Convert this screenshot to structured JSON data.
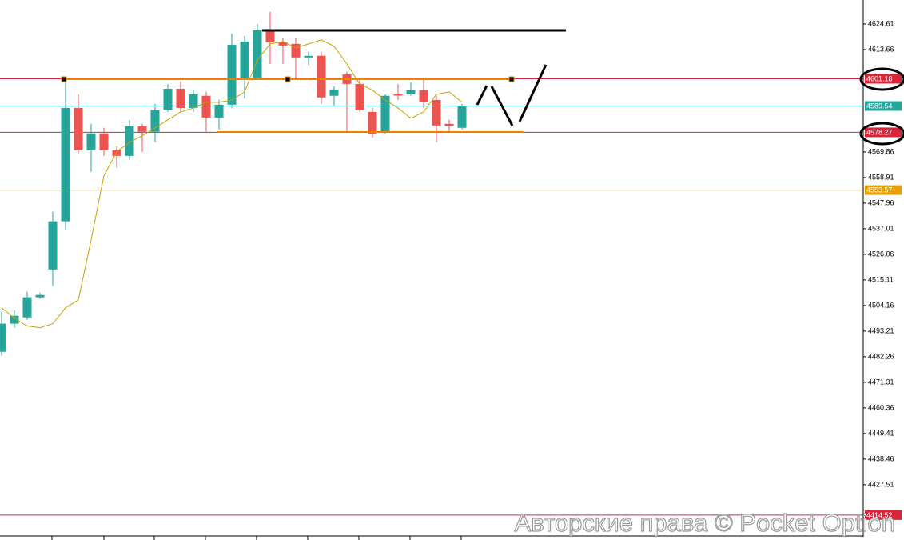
{
  "chart_data": {
    "type": "candlestick",
    "ylim": [
      4405.58,
      4634.88
    ],
    "yticks": [
      4624.61,
      4613.66,
      4569.86,
      4558.91,
      4547.96,
      4537.01,
      4526.06,
      4515.11,
      4504.16,
      4493.21,
      4482.26,
      4471.31,
      4460.36,
      4449.41,
      4438.46,
      4427.51
    ],
    "up_color": "#26a69a",
    "down_color": "#ef5350",
    "open": [
      4484.4,
      4496.4,
      4499.1,
      4507.7,
      4519.6,
      4540.2,
      4588.7,
      4570.6,
      4577.8,
      4570.6,
      4568.2,
      4580.9,
      4578.5,
      4587.7,
      4596.9,
      4588.7,
      4593.9,
      4584.6,
      4590.1,
      4601.4,
      4601.7,
      4621.9,
      4616.8,
      4616.1,
      4610.3,
      4611.0,
      4593.9,
      4603.1,
      4599.0,
      4587.0,
      4578.5,
      4594.5,
      4594.5,
      4596.3,
      4592.1,
      4581.9,
      4580.2
    ],
    "high": [
      4501.5,
      4502.2,
      4510.1,
      4509.7,
      4544.3,
      4600.7,
      4594.5,
      4581.9,
      4580.2,
      4572.3,
      4583.6,
      4581.9,
      4590.4,
      4599.0,
      4600.0,
      4596.6,
      4595.6,
      4592.1,
      4620.5,
      4619.5,
      4624.6,
      4629.8,
      4618.5,
      4618.5,
      4612.7,
      4612.7,
      4598.0,
      4604.1,
      4600.7,
      4588.7,
      4594.5,
      4599.0,
      4599.7,
      4601.7,
      4593.9,
      4583.6,
      4590.4
    ],
    "low": [
      4482.7,
      4494.7,
      4498.1,
      4507.0,
      4512.5,
      4536.4,
      4569.2,
      4561.4,
      4568.2,
      4563.1,
      4566.5,
      4569.9,
      4574.0,
      4587.0,
      4587.0,
      4587.0,
      4578.5,
      4579.5,
      4588.7,
      4592.8,
      4601.7,
      4607.5,
      4607.5,
      4600.7,
      4607.0,
      4590.4,
      4589.8,
      4578.5,
      4587.0,
      4576.1,
      4577.4,
      4592.1,
      4593.9,
      4588.7,
      4574.0,
      4578.5,
      4579.5
    ],
    "close": [
      4496.4,
      4499.8,
      4507.7,
      4508.7,
      4540.2,
      4588.7,
      4570.6,
      4577.8,
      4570.6,
      4568.2,
      4580.9,
      4578.5,
      4587.7,
      4596.9,
      4588.7,
      4594.5,
      4584.6,
      4590.1,
      4615.7,
      4617.1,
      4621.9,
      4616.8,
      4615.4,
      4610.3,
      4611.0,
      4593.2,
      4596.6,
      4599.0,
      4587.7,
      4577.4,
      4593.9,
      4594.2,
      4596.3,
      4591.1,
      4581.2,
      4580.9,
      4589.4
    ],
    "ma": {
      "color": "#c8a000",
      "values": [
        4503.2,
        4498.8,
        4495.4,
        4494.7,
        4496.4,
        4503.2,
        4506.6,
        4532.3,
        4559.7,
        4569.9,
        4574.0,
        4576.8,
        4580.2,
        4583.6,
        4587.0,
        4588.7,
        4591.1,
        4591.1,
        4592.1,
        4595.6,
        4609.3,
        4616.1,
        4617.1,
        4614.4,
        4616.1,
        4617.8,
        4615.1,
        4607.5,
        4599.0,
        4596.3,
        4592.1,
        4588.7,
        4584.3,
        4587.0,
        4594.5,
        4595.6,
        4591.1
      ]
    },
    "levels": [
      {
        "value": 4601.18,
        "color": "#d9253a"
      },
      {
        "value": 4589.54,
        "color": "#26a69a"
      },
      {
        "value": 4578.27,
        "color": "#d9253a"
      },
      {
        "value": 4553.57,
        "color": "#e8a000"
      },
      {
        "value": 4414.52,
        "color": "#d9253a"
      }
    ],
    "watermark": "Авторские права © Pocket Option"
  }
}
